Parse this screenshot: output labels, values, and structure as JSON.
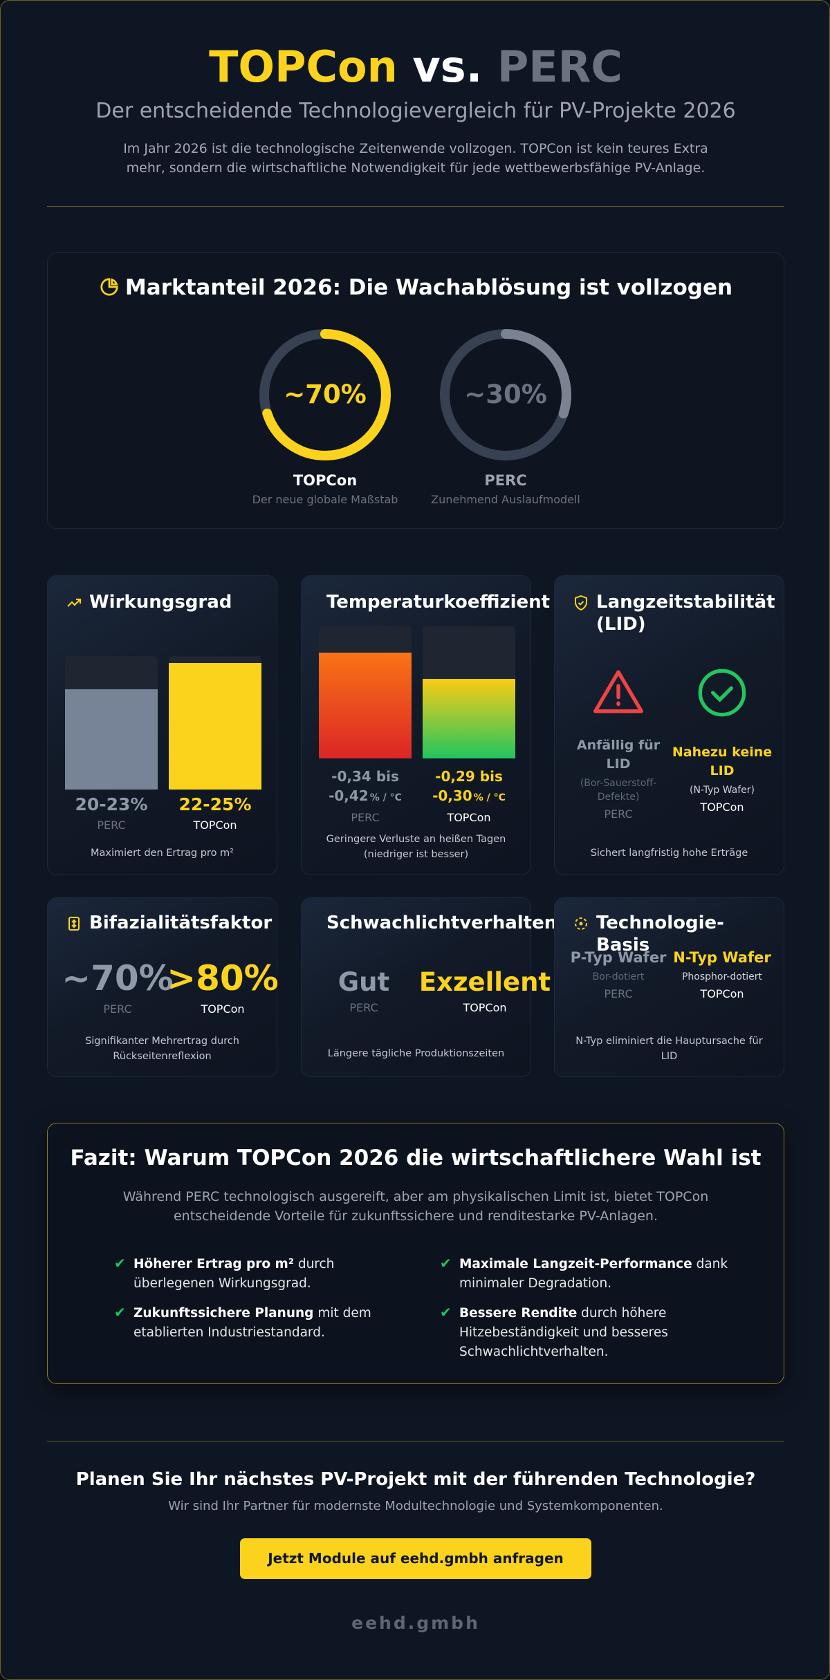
{
  "header": {
    "title_a": "TOPCon",
    "title_vs": "vs.",
    "title_b": "PERC",
    "subtitle": "Der entscheidende Technologievergleich für PV-Projekte 2026",
    "intro": "Im Jahr 2026 ist die technologische Zeitenwende vollzogen. TOPCon ist kein teures Extra mehr, sondern die wirtschaftliche Notwendigkeit für jede wettbewerbsfähige PV-Anlage."
  },
  "market": {
    "title": "Marktanteil 2026: Die Wachablösung ist vollzogen",
    "items": [
      {
        "share": {
          "value": 70,
          "label": "~70%"
        },
        "name": "TOPCon",
        "desc": "Der neue globale Maßstab"
      },
      {
        "share": {
          "value": 30,
          "label": "~30%"
        },
        "name": "PERC",
        "desc": "Zunehmend Auslaufmodell"
      }
    ]
  },
  "cards": [
    {
      "title": "Wirkungsgrad",
      "items": [
        {
          "value": "20-23%",
          "name": "PERC"
        },
        {
          "value": "22-25%",
          "name": "TOPCon"
        }
      ],
      "note": "Maximiert den Ertrag pro m²"
    },
    {
      "title": "Temperaturkoeffizient",
      "items": [
        {
          "value": "-0,34 bis -0,42",
          "unit": "% / °C",
          "name": "PERC"
        },
        {
          "value": "-0,29 bis -0,30",
          "unit": "% / °C",
          "name": "TOPCon"
        }
      ],
      "note": "Geringere Verluste an heißen Tagen (niedriger ist besser)"
    },
    {
      "title": "Langzeitstabilität (LID)",
      "items": [
        {
          "value": "Anfällig für LID",
          "detail": "(Bor-Sauerstoff-Defekte)",
          "name": "PERC"
        },
        {
          "value": "Nahezu keine LID",
          "detail": "(N-Typ Wafer)",
          "name": "TOPCon"
        }
      ],
      "note": "Sichert langfristig hohe Erträge"
    },
    {
      "title": "Bifazialitätsfaktor",
      "items": [
        {
          "value": "~70%",
          "name": "PERC"
        },
        {
          "value": ">80%",
          "name": "TOPCon"
        }
      ],
      "note": "Signifikanter Mehrertrag durch Rückseitenreflexion"
    },
    {
      "title": "Schwachlichtverhalten",
      "items": [
        {
          "value": "Gut",
          "name": "PERC"
        },
        {
          "value": "Exzellent",
          "name": "TOPCon"
        }
      ],
      "note": "Längere tägliche Produktionszeiten"
    },
    {
      "title": "Technologie-Basis",
      "items": [
        {
          "value": "P-Typ Wafer",
          "detail": "Bor-dotiert",
          "name": "PERC"
        },
        {
          "value": "N-Typ Wafer",
          "detail": "Phosphor-dotiert",
          "name": "TOPCon"
        }
      ],
      "note": "N-Typ eliminiert die Hauptursache für LID"
    }
  ],
  "fazit": {
    "title": "Fazit: Warum TOPCon 2026 die wirtschaftlichere Wahl ist",
    "intro": "Während PERC technologisch ausgereift, aber am physikalischen Limit ist, bietet TOPCon entscheidende Vorteile für zukunftssichere und renditestarke PV-Anlagen.",
    "points": [
      {
        "bold": "Höherer Ertrag pro m²",
        "text": "durch überlegenen Wirkungsgrad."
      },
      {
        "bold": "Maximale Langzeit-Performance",
        "text": "dank minimaler Degradation."
      },
      {
        "bold": "Zukunftssichere Planung",
        "text": "mit dem etablierten Industriestandard."
      },
      {
        "bold": "Bessere Rendite",
        "text": "durch höhere Hitzebeständigkeit und besseres Schwachlichtverhalten."
      }
    ]
  },
  "cta": {
    "title": "Planen Sie Ihr nächstes PV-Projekt mit der führenden Technologie?",
    "subtitle": "Wir sind Ihr Partner für modernste Modultechnologie und Systemkomponenten.",
    "button": "Jetzt Module auf eehd.gmbh anfragen"
  },
  "footer": "eehd.gmbh"
}
